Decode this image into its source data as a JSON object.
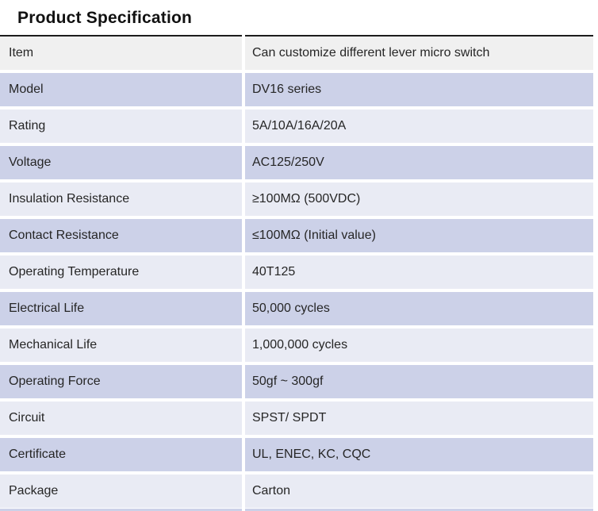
{
  "title": "Product Specification",
  "colors": {
    "title_color": "#111111",
    "rule_color": "#1c1c1c",
    "text_color": "#262626",
    "header_row_bg": "#f0f0f0",
    "dark_row_bg": "#ccd1e8",
    "light_row_bg": "#e9ebf4",
    "gap_color": "#ffffff"
  },
  "table": {
    "columns": [
      "attribute",
      "value"
    ],
    "rows": [
      {
        "label": "Item",
        "value": "Can customize different lever micro switch",
        "shade": "header"
      },
      {
        "label": "Model",
        "value": "DV16 series",
        "shade": "dark"
      },
      {
        "label": "Rating",
        "value": "5A/10A/16A/20A",
        "shade": "light"
      },
      {
        "label": "Voltage",
        "value": "AC125/250V",
        "shade": "dark"
      },
      {
        "label": "Insulation Resistance",
        "value": "≥100MΩ (500VDC)",
        "shade": "light"
      },
      {
        "label": "Contact Resistance",
        "value": "≤100MΩ (Initial value)",
        "shade": "dark"
      },
      {
        "label": "Operating Temperature",
        "value": "40T125",
        "shade": "light"
      },
      {
        "label": "Electrical Life",
        "value": "50,000 cycles",
        "shade": "dark"
      },
      {
        "label": "Mechanical Life",
        "value": "1,000,000 cycles",
        "shade": "light"
      },
      {
        "label": "Operating Force",
        "value": "50gf ~ 300gf",
        "shade": "dark"
      },
      {
        "label": "Circuit",
        "value": "SPST/ SPDT",
        "shade": "light"
      },
      {
        "label": "Certificate",
        "value": "UL, ENEC, KC, CQC",
        "shade": "dark"
      },
      {
        "label": "Package",
        "value": "Carton",
        "shade": "light"
      }
    ]
  }
}
